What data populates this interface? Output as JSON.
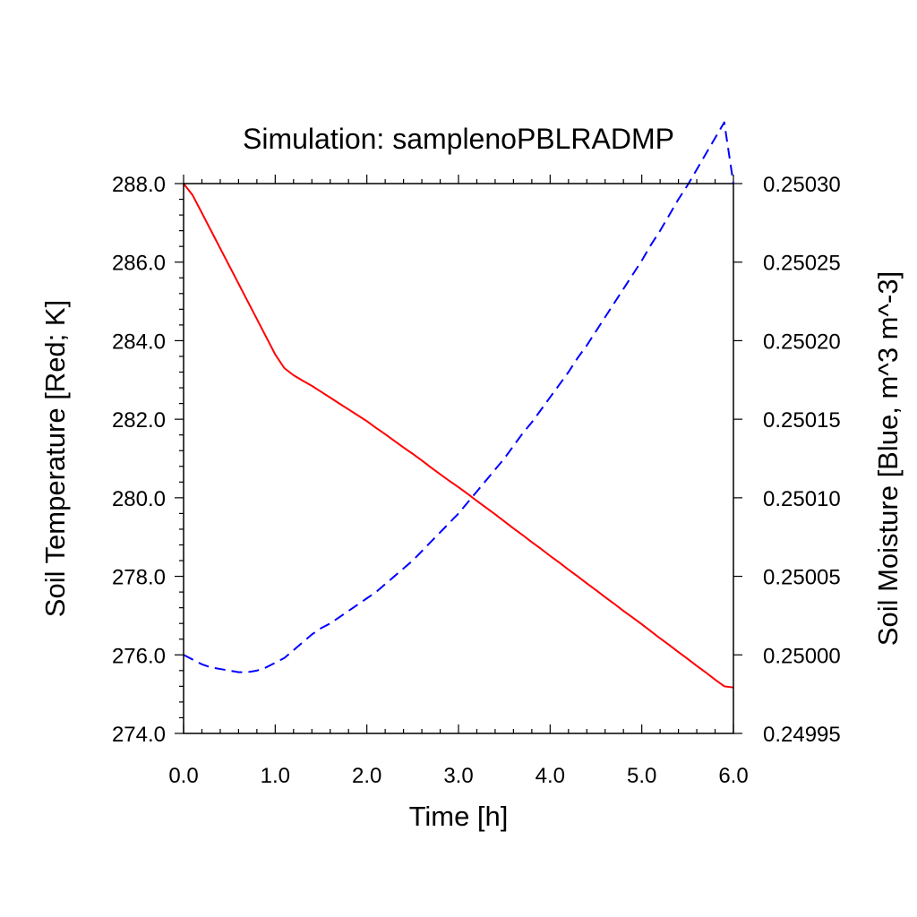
{
  "chart_data": {
    "type": "line",
    "title": "Simulation: samplenoPBLRADMP",
    "xlabel": "Time [h]",
    "ylabel_left": "Soil Temperature [Red; K]",
    "ylabel_right": "Soil Moisture [Blue, m^3 m^-3]",
    "xlim": [
      0,
      6
    ],
    "ylim_left": [
      274,
      288
    ],
    "ylim_right": [
      0.24995,
      0.2503
    ],
    "x_ticks": [
      0,
      1,
      2,
      3,
      4,
      5,
      6
    ],
    "x_tick_labels": [
      "0.0",
      "1.0",
      "2.0",
      "3.0",
      "4.0",
      "5.0",
      "6.0"
    ],
    "y_left_ticks": [
      274,
      276,
      278,
      280,
      282,
      284,
      286,
      288
    ],
    "y_left_tick_labels": [
      "274.0",
      "276.0",
      "278.0",
      "280.0",
      "282.0",
      "284.0",
      "286.0",
      "288.0"
    ],
    "y_right_ticks": [
      0.24995,
      0.25,
      0.25005,
      0.2501,
      0.25015,
      0.2502,
      0.25025,
      0.2503
    ],
    "y_right_tick_labels": [
      "0.24995",
      "0.25000",
      "0.25005",
      "0.25010",
      "0.25015",
      "0.25020",
      "0.25025",
      "0.25030"
    ],
    "grid": false,
    "series": [
      {
        "axis": "left",
        "color": "#ff0000",
        "style": "solid",
        "x": [
          0.0,
          0.1,
          0.2,
          0.3,
          0.4,
          0.5,
          0.6,
          0.7,
          0.8,
          0.9,
          1.0,
          1.1,
          1.2,
          1.3,
          1.4,
          1.5,
          1.6,
          1.7,
          1.8,
          1.9,
          2.0,
          2.1,
          2.2,
          2.3,
          2.4,
          2.5,
          2.6,
          2.7,
          2.8,
          2.9,
          3.0,
          3.1,
          3.2,
          3.3,
          3.4,
          3.5,
          3.6,
          3.7,
          3.8,
          3.9,
          4.0,
          4.1,
          4.2,
          4.3,
          4.4,
          4.5,
          4.6,
          4.7,
          4.8,
          4.9,
          5.0,
          5.1,
          5.2,
          5.3,
          5.4,
          5.5,
          5.6,
          5.7,
          5.8,
          5.9,
          6.0
        ],
        "y": [
          288.0,
          287.7,
          287.25,
          286.8,
          286.35,
          285.9,
          285.45,
          285.0,
          284.55,
          284.1,
          283.65,
          283.3,
          283.12,
          282.98,
          282.85,
          282.7,
          282.55,
          282.4,
          282.25,
          282.1,
          281.95,
          281.78,
          281.62,
          281.45,
          281.28,
          281.12,
          280.95,
          280.77,
          280.6,
          280.43,
          280.27,
          280.1,
          279.92,
          279.75,
          279.58,
          279.4,
          279.22,
          279.05,
          278.87,
          278.7,
          278.52,
          278.35,
          278.17,
          278.0,
          277.82,
          277.65,
          277.47,
          277.3,
          277.12,
          276.95,
          276.78,
          276.6,
          276.42,
          276.25,
          276.07,
          275.9,
          275.72,
          275.55,
          275.37,
          275.2,
          275.17
        ]
      },
      {
        "axis": "right",
        "color": "#0000ff",
        "style": "dashed",
        "x": [
          0.0,
          0.1,
          0.2,
          0.3,
          0.4,
          0.5,
          0.6,
          0.7,
          0.8,
          0.9,
          1.0,
          1.1,
          1.2,
          1.3,
          1.4,
          1.5,
          1.6,
          1.7,
          1.8,
          1.9,
          2.0,
          2.1,
          2.2,
          2.3,
          2.4,
          2.5,
          2.6,
          2.7,
          2.8,
          2.9,
          3.0,
          3.1,
          3.2,
          3.3,
          3.4,
          3.5,
          3.6,
          3.7,
          3.8,
          3.9,
          4.0,
          4.1,
          4.2,
          4.3,
          4.4,
          4.5,
          4.6,
          4.7,
          4.8,
          4.9,
          5.0,
          5.1,
          5.2,
          5.3,
          5.4,
          5.5,
          5.6,
          5.7,
          5.8,
          5.9,
          6.0
        ],
        "y": [
          0.25,
          0.249997,
          0.249994,
          0.249992,
          0.249991,
          0.24999,
          0.249989,
          0.249989,
          0.24999,
          0.249992,
          0.249995,
          0.249998,
          0.250003,
          0.250008,
          0.250013,
          0.250017,
          0.25002,
          0.250024,
          0.250028,
          0.250032,
          0.250036,
          0.25004,
          0.250045,
          0.25005,
          0.250055,
          0.25006,
          0.250066,
          0.250072,
          0.250078,
          0.250084,
          0.25009,
          0.250097,
          0.250104,
          0.250111,
          0.250118,
          0.250125,
          0.250133,
          0.250141,
          0.250148,
          0.250156,
          0.250164,
          0.250172,
          0.25018,
          0.250189,
          0.250197,
          0.250206,
          0.250215,
          0.250224,
          0.250233,
          0.250242,
          0.250251,
          0.250261,
          0.25027,
          0.25028,
          0.25029,
          0.250299,
          0.250309,
          0.250319,
          0.250329,
          0.250339,
          0.2503
        ]
      }
    ]
  }
}
